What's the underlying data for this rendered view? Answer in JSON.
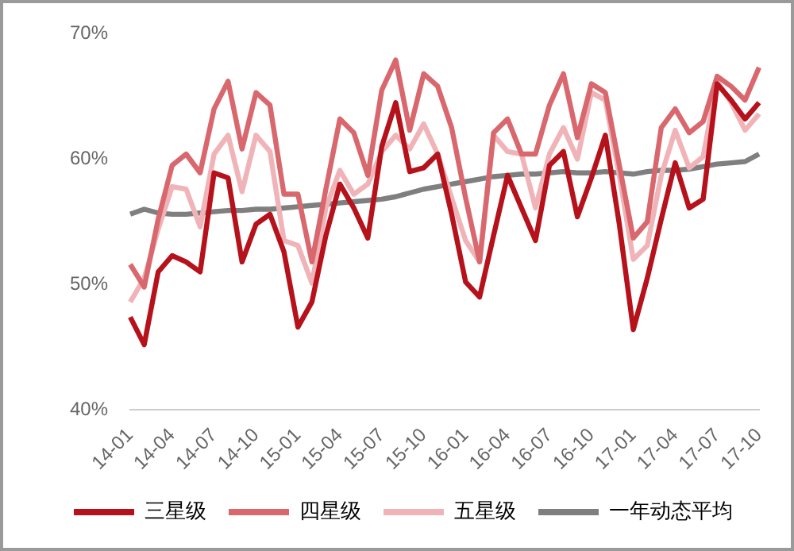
{
  "chart_data": {
    "type": "line",
    "categories": [
      "14-01",
      null,
      null,
      "14-04",
      null,
      null,
      "14-07",
      null,
      null,
      "14-10",
      null,
      null,
      "15-01",
      null,
      null,
      "15-04",
      null,
      null,
      "15-07",
      null,
      null,
      "15-10",
      null,
      null,
      "16-01",
      null,
      null,
      "16-04",
      null,
      null,
      "16-07",
      null,
      null,
      "16-10",
      null,
      null,
      "17-01",
      null,
      null,
      "17-04",
      null,
      null,
      "17-07",
      null,
      null,
      "17-10"
    ],
    "series": [
      {
        "name": "三星级",
        "color": "#b5121b",
        "values": [
          47.4,
          45.2,
          51.0,
          52.3,
          51.8,
          51.0,
          58.9,
          58.5,
          51.8,
          54.8,
          55.6,
          52.6,
          46.6,
          48.6,
          53.9,
          58.0,
          56.1,
          53.7,
          61.0,
          64.5,
          59.0,
          59.3,
          60.4,
          55.6,
          50.2,
          49.0,
          53.9,
          58.7,
          56.1,
          53.5,
          59.5,
          60.6,
          55.4,
          58.5,
          61.9,
          54.8,
          46.4,
          50.5,
          55.2,
          59.7,
          56.1,
          56.8,
          66.0,
          64.7,
          63.2,
          64.5
        ]
      },
      {
        "name": "四星级",
        "color": "#d9686e",
        "values": [
          51.6,
          49.8,
          55.2,
          59.5,
          60.4,
          58.9,
          64.0,
          66.2,
          60.8,
          65.3,
          64.3,
          57.2,
          57.2,
          51.8,
          57.6,
          63.2,
          62.1,
          58.7,
          65.5,
          67.9,
          62.3,
          66.8,
          65.8,
          62.5,
          56.9,
          51.8,
          62.1,
          63.2,
          60.4,
          60.4,
          64.3,
          66.8,
          61.7,
          66.0,
          65.3,
          59.5,
          53.7,
          55.0,
          62.5,
          64.0,
          62.1,
          63.0,
          66.6,
          65.8,
          64.7,
          67.3
        ]
      },
      {
        "name": "五星级",
        "color": "#f0b4b8",
        "values": [
          48.6,
          50.5,
          54.4,
          57.8,
          57.6,
          54.6,
          60.4,
          61.9,
          57.4,
          61.9,
          60.6,
          53.5,
          53.1,
          50.1,
          56.1,
          59.1,
          57.2,
          58.0,
          60.6,
          61.9,
          60.8,
          62.8,
          60.4,
          56.9,
          53.5,
          51.8,
          61.9,
          60.6,
          60.4,
          56.1,
          60.4,
          62.5,
          60.0,
          65.3,
          64.7,
          58.7,
          52.0,
          53.1,
          58.7,
          62.3,
          59.3,
          60.2,
          66.2,
          64.5,
          62.3,
          63.6
        ]
      },
      {
        "name": "一年动态平均",
        "color": "#7f7f7f",
        "values": [
          55.6,
          56.0,
          55.7,
          55.6,
          55.6,
          55.7,
          55.8,
          55.9,
          55.9,
          56.0,
          56.0,
          56.1,
          56.2,
          56.3,
          56.4,
          56.5,
          56.6,
          56.7,
          56.8,
          57.0,
          57.3,
          57.6,
          57.8,
          58.0,
          58.2,
          58.4,
          58.6,
          58.7,
          58.8,
          58.8,
          58.9,
          59.0,
          58.9,
          58.9,
          59.0,
          58.9,
          58.8,
          59.0,
          59.1,
          59.1,
          59.2,
          59.4,
          59.6,
          59.7,
          59.8,
          60.4
        ]
      }
    ],
    "ylim": [
      40,
      70
    ],
    "yticks": [
      {
        "value": 40,
        "label": "40%"
      },
      {
        "value": 50,
        "label": "50%"
      },
      {
        "value": 60,
        "label": "60%"
      },
      {
        "value": 70,
        "label": "70%"
      }
    ],
    "grid": false,
    "legend": "bottom",
    "marker": "none",
    "line_style": "solid"
  }
}
